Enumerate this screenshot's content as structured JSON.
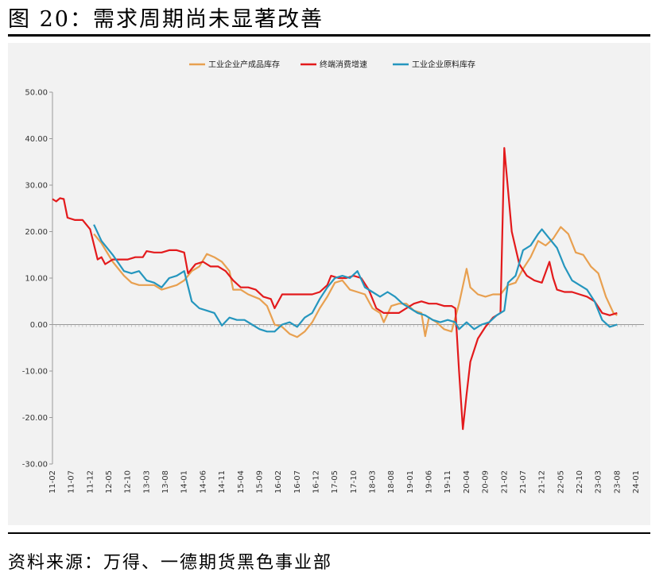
{
  "figure": {
    "title": "图 20：需求周期尚未显著改善",
    "source": "资料来源：万得、一德期货黑色事业部"
  },
  "chart_data": {
    "type": "line",
    "title": "",
    "xlabel": "",
    "ylabel": "",
    "ylim": [
      -30,
      50
    ],
    "yticks": [
      "50.00",
      "40.00",
      "30.00",
      "20.00",
      "10.00",
      "0.00",
      "-10.00",
      "-20.00",
      "-30.00"
    ],
    "ytick_values": [
      50,
      40,
      30,
      20,
      10,
      0,
      -10,
      -20,
      -30
    ],
    "xticks": [
      "11-02",
      "11-07",
      "11-12",
      "12-05",
      "12-10",
      "13-03",
      "13-08",
      "14-01",
      "14-06",
      "14-11",
      "15-04",
      "15-09",
      "16-02",
      "16-07",
      "16-12",
      "17-05",
      "17-10",
      "18-03",
      "18-08",
      "19-01",
      "19-06",
      "19-11",
      "20-04",
      "20-09",
      "21-02",
      "21-07",
      "21-12",
      "22-05",
      "22-10",
      "23-03",
      "23-08",
      "24-01"
    ],
    "grid": false,
    "legend_position": "top",
    "series": [
      {
        "name": "工业企业产成品库存",
        "color": "#e8a050",
        "points": [
          [
            "12-01",
            19.5
          ],
          [
            "12-03",
            17.5
          ],
          [
            "12-06",
            13.5
          ],
          [
            "12-09",
            10.5
          ],
          [
            "12-11",
            9.0
          ],
          [
            "13-01",
            8.5
          ],
          [
            "13-03",
            8.5
          ],
          [
            "13-05",
            8.5
          ],
          [
            "13-07",
            7.5
          ],
          [
            "13-09",
            8.0
          ],
          [
            "13-11",
            8.5
          ],
          [
            "14-01",
            9.5
          ],
          [
            "14-03",
            11.5
          ],
          [
            "14-05",
            12.5
          ],
          [
            "14-07",
            15.2
          ],
          [
            "14-09",
            14.5
          ],
          [
            "14-11",
            13.5
          ],
          [
            "15-01",
            11.5
          ],
          [
            "15-02",
            7.5
          ],
          [
            "15-04",
            7.5
          ],
          [
            "15-06",
            6.5
          ],
          [
            "15-09",
            5.5
          ],
          [
            "15-11",
            4.0
          ],
          [
            "16-01",
            0.0
          ],
          [
            "16-03",
            -0.5
          ],
          [
            "16-05",
            -2.0
          ],
          [
            "16-07",
            -2.7
          ],
          [
            "16-09",
            -1.5
          ],
          [
            "16-11",
            0.5
          ],
          [
            "17-01",
            3.5
          ],
          [
            "17-03",
            6.0
          ],
          [
            "17-05",
            9.0
          ],
          [
            "17-07",
            9.5
          ],
          [
            "17-09",
            7.5
          ],
          [
            "17-11",
            7.0
          ],
          [
            "18-01",
            6.5
          ],
          [
            "18-03",
            3.5
          ],
          [
            "18-05",
            2.5
          ],
          [
            "18-06",
            0.5
          ],
          [
            "18-08",
            4.0
          ],
          [
            "18-10",
            4.5
          ],
          [
            "18-12",
            4.5
          ],
          [
            "19-02",
            3.0
          ],
          [
            "19-04",
            2.5
          ],
          [
            "19-05",
            -2.5
          ],
          [
            "19-06",
            1.5
          ],
          [
            "19-08",
            0.5
          ],
          [
            "19-10",
            -1.0
          ],
          [
            "19-12",
            -1.5
          ],
          [
            "20-02",
            4.5
          ],
          [
            "20-04",
            12.0
          ],
          [
            "20-05",
            8.0
          ],
          [
            "20-07",
            6.5
          ],
          [
            "20-09",
            6.0
          ],
          [
            "20-11",
            6.5
          ],
          [
            "21-01",
            6.5
          ],
          [
            "21-03",
            8.5
          ],
          [
            "21-05",
            9.0
          ],
          [
            "21-07",
            12.0
          ],
          [
            "21-09",
            14.5
          ],
          [
            "21-11",
            18.0
          ],
          [
            "22-01",
            17.0
          ],
          [
            "22-03",
            18.5
          ],
          [
            "22-05",
            21.0
          ],
          [
            "22-07",
            19.5
          ],
          [
            "22-09",
            15.5
          ],
          [
            "22-11",
            15.0
          ],
          [
            "23-01",
            12.5
          ],
          [
            "23-03",
            11.0
          ],
          [
            "23-05",
            6.0
          ],
          [
            "23-07",
            2.5
          ],
          [
            "23-08",
            2.0
          ]
        ]
      },
      {
        "name": "终端消费增速",
        "color": "#e31a1c",
        "points": [
          [
            "11-02",
            27.0
          ],
          [
            "11-03",
            26.5
          ],
          [
            "11-04",
            27.2
          ],
          [
            "11-05",
            27.0
          ],
          [
            "11-06",
            23.0
          ],
          [
            "11-08",
            22.5
          ],
          [
            "11-10",
            22.5
          ],
          [
            "11-12",
            20.5
          ],
          [
            "12-02",
            14.0
          ],
          [
            "12-03",
            14.5
          ],
          [
            "12-04",
            13.0
          ],
          [
            "12-06",
            14.0
          ],
          [
            "12-08",
            14.0
          ],
          [
            "12-10",
            14.0
          ],
          [
            "12-12",
            14.5
          ],
          [
            "13-02",
            14.5
          ],
          [
            "13-03",
            15.8
          ],
          [
            "13-05",
            15.5
          ],
          [
            "13-07",
            15.5
          ],
          [
            "13-09",
            16.0
          ],
          [
            "13-11",
            16.0
          ],
          [
            "14-01",
            15.5
          ],
          [
            "14-02",
            11.0
          ],
          [
            "14-04",
            13.0
          ],
          [
            "14-06",
            13.5
          ],
          [
            "14-08",
            12.5
          ],
          [
            "14-10",
            12.5
          ],
          [
            "14-12",
            11.5
          ],
          [
            "15-02",
            9.5
          ],
          [
            "15-04",
            8.0
          ],
          [
            "15-06",
            8.0
          ],
          [
            "15-08",
            7.5
          ],
          [
            "15-10",
            6.0
          ],
          [
            "15-12",
            5.5
          ],
          [
            "16-01",
            3.5
          ],
          [
            "16-03",
            6.5
          ],
          [
            "16-05",
            6.5
          ],
          [
            "16-07",
            6.5
          ],
          [
            "16-09",
            6.5
          ],
          [
            "16-11",
            6.5
          ],
          [
            "17-01",
            7.0
          ],
          [
            "17-03",
            8.5
          ],
          [
            "17-04",
            10.5
          ],
          [
            "17-06",
            10.0
          ],
          [
            "17-08",
            10.0
          ],
          [
            "17-10",
            10.5
          ],
          [
            "17-12",
            10.0
          ],
          [
            "18-02",
            7.5
          ],
          [
            "18-04",
            3.5
          ],
          [
            "18-06",
            2.5
          ],
          [
            "18-08",
            2.5
          ],
          [
            "18-10",
            2.5
          ],
          [
            "18-12",
            3.5
          ],
          [
            "19-02",
            4.5
          ],
          [
            "19-04",
            5.0
          ],
          [
            "19-06",
            4.5
          ],
          [
            "19-08",
            4.5
          ],
          [
            "19-10",
            4.0
          ],
          [
            "19-12",
            4.0
          ],
          [
            "20-01",
            3.5
          ],
          [
            "20-02",
            -10.0
          ],
          [
            "20-03",
            -22.5
          ],
          [
            "20-04",
            -15.0
          ],
          [
            "20-05",
            -8.0
          ],
          [
            "20-07",
            -3.0
          ],
          [
            "20-09",
            -0.5
          ],
          [
            "20-11",
            1.5
          ],
          [
            "21-01",
            2.5
          ],
          [
            "21-02",
            38.0
          ],
          [
            "21-04",
            20.0
          ],
          [
            "21-06",
            13.0
          ],
          [
            "21-08",
            10.5
          ],
          [
            "21-10",
            9.5
          ],
          [
            "21-12",
            9.0
          ],
          [
            "22-02",
            13.5
          ],
          [
            "22-03",
            10.0
          ],
          [
            "22-04",
            7.5
          ],
          [
            "22-06",
            7.0
          ],
          [
            "22-08",
            7.0
          ],
          [
            "22-10",
            6.5
          ],
          [
            "22-12",
            6.0
          ],
          [
            "23-02",
            5.0
          ],
          [
            "23-04",
            2.5
          ],
          [
            "23-06",
            2.0
          ],
          [
            "23-08",
            2.5
          ]
        ]
      },
      {
        "name": "工业企业原料库存",
        "color": "#2596be",
        "points": [
          [
            "12-01",
            21.5
          ],
          [
            "12-03",
            18.0
          ],
          [
            "12-06",
            15.0
          ],
          [
            "12-09",
            11.5
          ],
          [
            "12-11",
            11.0
          ],
          [
            "13-01",
            11.5
          ],
          [
            "13-03",
            9.5
          ],
          [
            "13-05",
            9.0
          ],
          [
            "13-07",
            8.0
          ],
          [
            "13-09",
            10.0
          ],
          [
            "13-11",
            10.5
          ],
          [
            "14-01",
            11.5
          ],
          [
            "14-03",
            5.0
          ],
          [
            "14-05",
            3.5
          ],
          [
            "14-07",
            3.0
          ],
          [
            "14-09",
            2.5
          ],
          [
            "14-11",
            -0.2
          ],
          [
            "15-01",
            1.5
          ],
          [
            "15-03",
            1.0
          ],
          [
            "15-05",
            1.0
          ],
          [
            "15-07",
            0.0
          ],
          [
            "15-09",
            -1.0
          ],
          [
            "15-11",
            -1.5
          ],
          [
            "16-01",
            -1.5
          ],
          [
            "16-03",
            0.0
          ],
          [
            "16-05",
            0.5
          ],
          [
            "16-07",
            -0.5
          ],
          [
            "16-09",
            1.5
          ],
          [
            "16-11",
            2.5
          ],
          [
            "17-01",
            5.5
          ],
          [
            "17-03",
            8.0
          ],
          [
            "17-05",
            10.0
          ],
          [
            "17-07",
            10.5
          ],
          [
            "17-09",
            10.0
          ],
          [
            "17-11",
            11.5
          ],
          [
            "18-01",
            8.0
          ],
          [
            "18-03",
            7.0
          ],
          [
            "18-05",
            6.0
          ],
          [
            "18-07",
            7.0
          ],
          [
            "18-09",
            6.0
          ],
          [
            "18-11",
            4.5
          ],
          [
            "19-01",
            3.5
          ],
          [
            "19-03",
            2.5
          ],
          [
            "19-05",
            2.0
          ],
          [
            "19-07",
            1.0
          ],
          [
            "19-09",
            0.5
          ],
          [
            "19-11",
            1.0
          ],
          [
            "20-01",
            0.5
          ],
          [
            "20-02",
            -1.0
          ],
          [
            "20-04",
            0.5
          ],
          [
            "20-06",
            -1.0
          ],
          [
            "20-08",
            0.0
          ],
          [
            "20-10",
            0.5
          ],
          [
            "20-12",
            2.0
          ],
          [
            "21-02",
            3.0
          ],
          [
            "21-03",
            9.0
          ],
          [
            "21-05",
            10.5
          ],
          [
            "21-07",
            16.0
          ],
          [
            "21-09",
            17.0
          ],
          [
            "21-11",
            19.5
          ],
          [
            "21-12",
            20.5
          ],
          [
            "22-02",
            18.5
          ],
          [
            "22-04",
            16.5
          ],
          [
            "22-06",
            12.5
          ],
          [
            "22-08",
            9.5
          ],
          [
            "22-10",
            8.5
          ],
          [
            "22-12",
            7.5
          ],
          [
            "23-02",
            5.0
          ],
          [
            "23-04",
            1.0
          ],
          [
            "23-06",
            -0.5
          ],
          [
            "23-08",
            0.0
          ]
        ]
      }
    ]
  }
}
